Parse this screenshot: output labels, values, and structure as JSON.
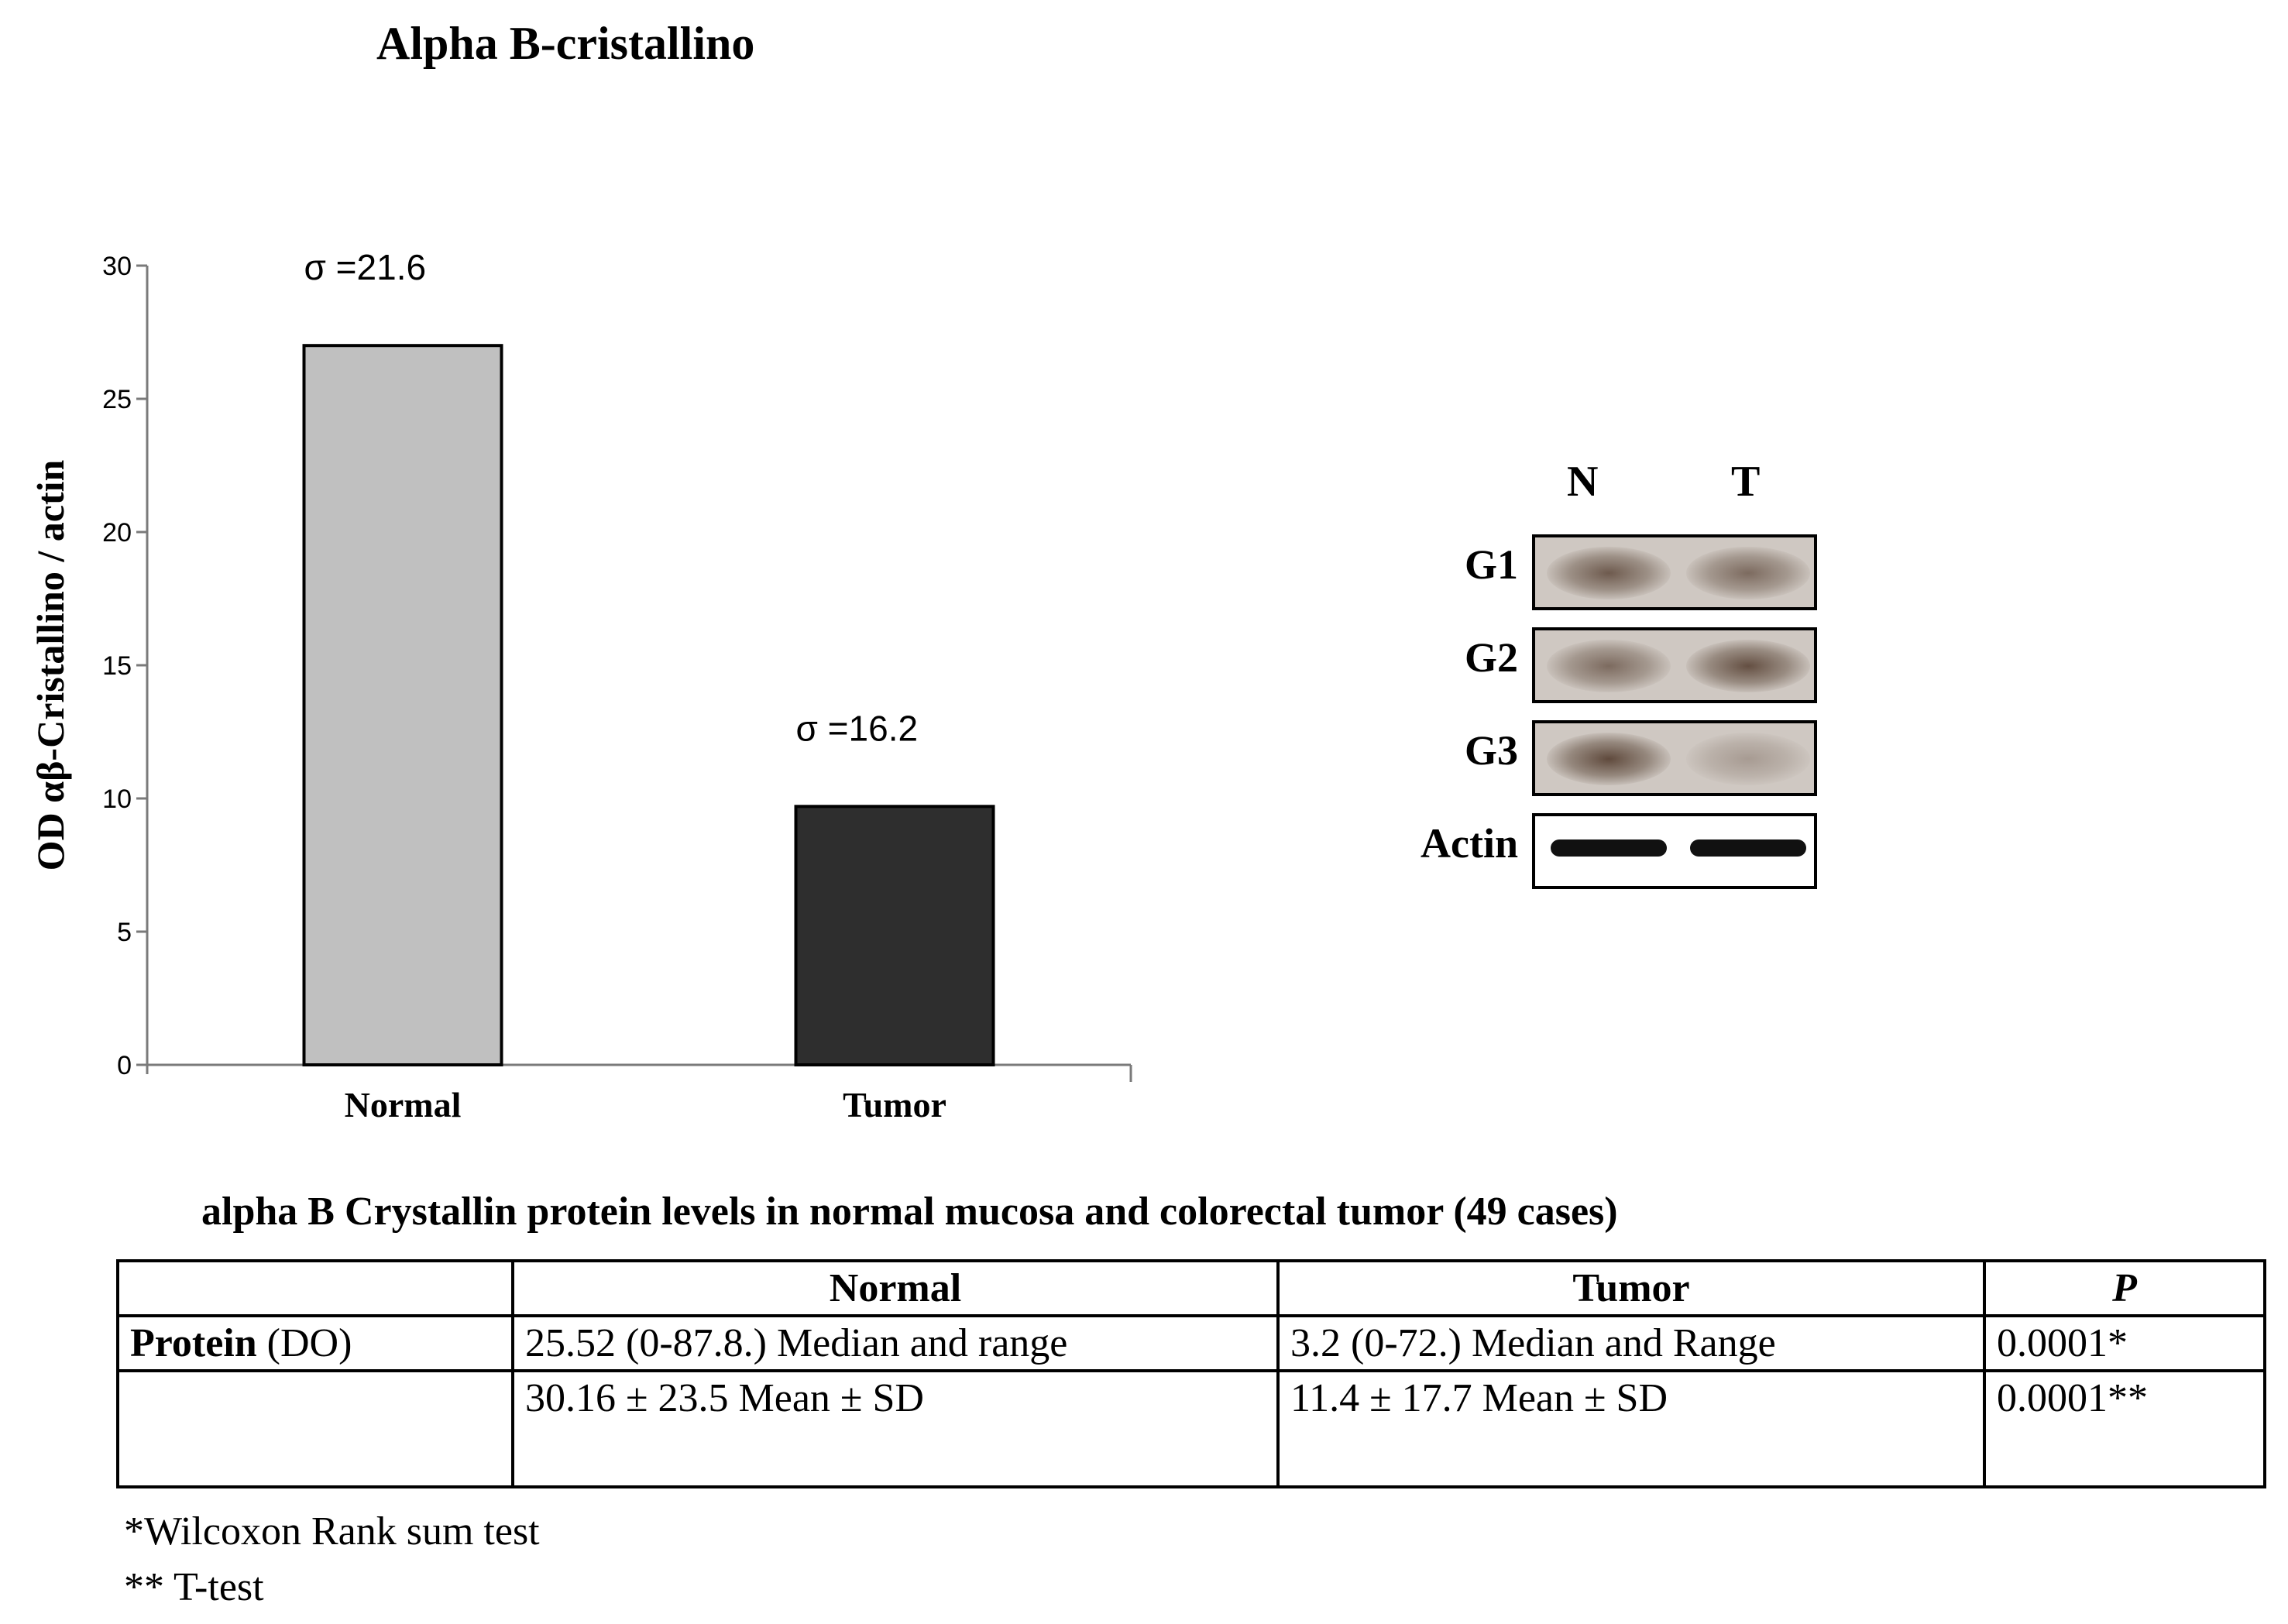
{
  "chart_data": {
    "type": "bar",
    "title": "Alpha B-cristallino",
    "ylabel": "OD αβ-Cristallino / actin",
    "xlabel": "",
    "categories": [
      "Normal",
      "Tumor"
    ],
    "values": [
      27,
      9.7
    ],
    "bar_colors": [
      "#c0c0c0",
      "#2e2e2e"
    ],
    "annotations": [
      "σ =21.6",
      "σ =16.2"
    ],
    "ylim": [
      0,
      30
    ],
    "yticks": [
      0,
      5,
      10,
      15,
      20,
      25,
      30
    ],
    "grid": false,
    "legend": "none"
  },
  "blot": {
    "lanes": [
      "N",
      "T"
    ],
    "rows": [
      {
        "label": "G1",
        "n": 0.8,
        "t": 0.65
      },
      {
        "label": "G2",
        "n": 0.65,
        "t": 0.9
      },
      {
        "label": "G3",
        "n": 0.95,
        "t": 0.2
      },
      {
        "label": "Actin",
        "n": 1.0,
        "t": 1.0
      }
    ]
  },
  "table": {
    "caption": "alpha B Crystallin protein  levels in normal mucosa  and colorectal tumor (49 cases)",
    "headers": [
      "",
      "Normal",
      "Tumor",
      "P"
    ],
    "row1": {
      "label_bold": "Protein",
      "label_rest": " (DO)",
      "normal": "25.52 (0-87.8.) Median and  range",
      "tumor": "3.2 (0-72.) Median and  Range",
      "p": "0.0001*"
    },
    "row2": {
      "label": "",
      "normal": "30.16 ± 23.5 Mean ± SD",
      "tumor": "11.4 ± 17.7 Mean ± SD",
      "p": "0.0001**"
    }
  },
  "footnotes": [
    "*Wilcoxon Rank sum test",
    "** T-test"
  ]
}
